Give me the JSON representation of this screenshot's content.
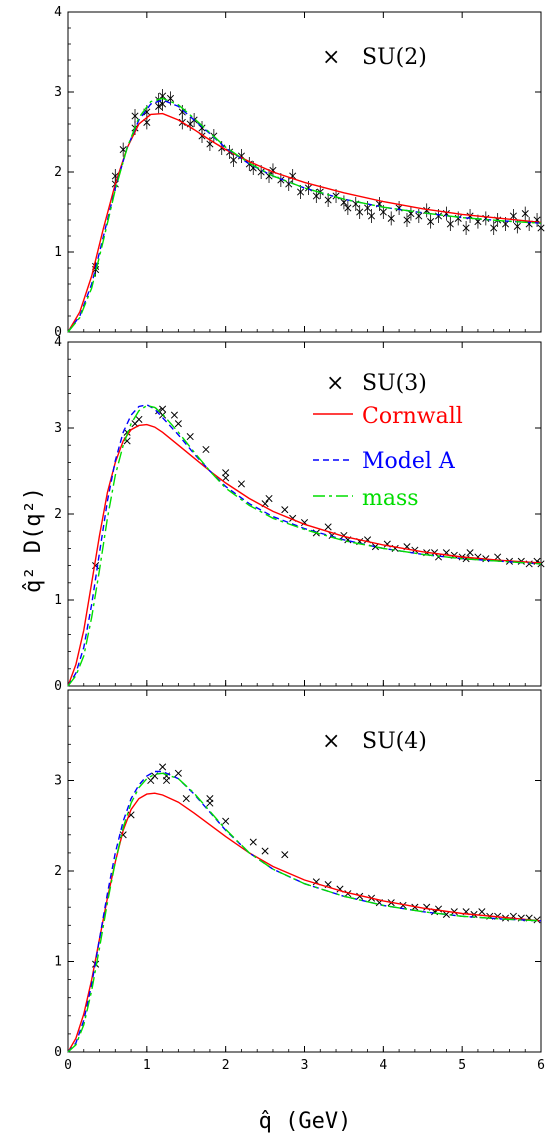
{
  "chart_data": [
    {
      "type": "line",
      "title": "SU(2)",
      "xlim": [
        0,
        6
      ],
      "ylim": [
        0,
        4
      ],
      "yticks": [
        0,
        1,
        2,
        3,
        4
      ],
      "series": [
        {
          "name": "Cornwall",
          "color": "#ff0000",
          "dash": "solid",
          "x": [
            0,
            0.15,
            0.3,
            0.45,
            0.6,
            0.75,
            0.9,
            1.05,
            1.2,
            1.4,
            1.6,
            1.8,
            2.0,
            2.3,
            2.6,
            3.0,
            3.5,
            4.0,
            4.5,
            5.0,
            5.5,
            6.0
          ],
          "y": [
            0,
            0.25,
            0.7,
            1.3,
            1.85,
            2.3,
            2.6,
            2.72,
            2.73,
            2.65,
            2.53,
            2.4,
            2.28,
            2.13,
            2.0,
            1.87,
            1.74,
            1.63,
            1.54,
            1.47,
            1.42,
            1.37
          ]
        },
        {
          "name": "Model A",
          "color": "#0000ff",
          "dash": "dashed",
          "x": [
            0,
            0.15,
            0.3,
            0.45,
            0.6,
            0.75,
            0.9,
            1.05,
            1.2,
            1.4,
            1.6,
            1.8,
            2.0,
            2.3,
            2.6,
            3.0,
            3.5,
            4.0,
            4.5,
            5.0,
            5.5,
            6.0
          ],
          "y": [
            0,
            0.2,
            0.6,
            1.2,
            1.8,
            2.3,
            2.65,
            2.85,
            2.9,
            2.82,
            2.65,
            2.48,
            2.3,
            2.1,
            1.95,
            1.8,
            1.66,
            1.56,
            1.49,
            1.43,
            1.39,
            1.36
          ]
        },
        {
          "name": "mass",
          "color": "#00dd00",
          "dash": "dashdot",
          "x": [
            0,
            0.15,
            0.3,
            0.45,
            0.6,
            0.75,
            0.9,
            1.05,
            1.2,
            1.4,
            1.6,
            1.8,
            2.0,
            2.3,
            2.6,
            3.0,
            3.5,
            4.0,
            4.5,
            5.0,
            5.5,
            6.0
          ],
          "y": [
            0,
            0.18,
            0.55,
            1.15,
            1.78,
            2.3,
            2.68,
            2.88,
            2.92,
            2.84,
            2.67,
            2.49,
            2.31,
            2.11,
            1.95,
            1.8,
            1.66,
            1.56,
            1.49,
            1.43,
            1.39,
            1.36
          ]
        }
      ],
      "points": {
        "x": [
          0.35,
          0.35,
          0.6,
          0.6,
          0.7,
          0.85,
          0.85,
          1.0,
          1.0,
          1.15,
          1.15,
          1.2,
          1.2,
          1.3,
          1.45,
          1.45,
          1.55,
          1.6,
          1.7,
          1.7,
          1.8,
          1.85,
          1.95,
          2.05,
          2.1,
          2.2,
          2.3,
          2.35,
          2.45,
          2.55,
          2.6,
          2.7,
          2.8,
          2.85,
          2.95,
          3.05,
          3.15,
          3.2,
          3.3,
          3.4,
          3.5,
          3.55,
          3.65,
          3.7,
          3.8,
          3.85,
          3.95,
          4.0,
          4.1,
          4.2,
          4.3,
          4.35,
          4.45,
          4.55,
          4.6,
          4.7,
          4.8,
          4.85,
          4.95,
          5.05,
          5.1,
          5.2,
          5.3,
          5.4,
          5.45,
          5.55,
          5.65,
          5.7,
          5.8,
          5.85,
          5.95,
          6.0
        ],
        "y": [
          0.82,
          0.78,
          1.85,
          1.95,
          2.28,
          2.55,
          2.7,
          2.75,
          2.62,
          2.9,
          2.82,
          2.95,
          2.85,
          2.92,
          2.75,
          2.62,
          2.6,
          2.65,
          2.55,
          2.45,
          2.35,
          2.45,
          2.3,
          2.25,
          2.15,
          2.2,
          2.1,
          2.05,
          2.0,
          1.95,
          2.02,
          1.9,
          1.85,
          1.95,
          1.75,
          1.8,
          1.7,
          1.75,
          1.65,
          1.7,
          1.62,
          1.55,
          1.6,
          1.5,
          1.55,
          1.45,
          1.6,
          1.5,
          1.42,
          1.55,
          1.4,
          1.48,
          1.45,
          1.52,
          1.38,
          1.45,
          1.48,
          1.35,
          1.42,
          1.3,
          1.45,
          1.38,
          1.42,
          1.3,
          1.4,
          1.35,
          1.45,
          1.32,
          1.48,
          1.35,
          1.4,
          1.3
        ]
      }
    },
    {
      "type": "line",
      "title": "SU(3)",
      "ylabel": "q̂² D(q²)",
      "xlim": [
        0,
        6
      ],
      "ylim": [
        0,
        4
      ],
      "yticks": [
        0,
        1,
        2,
        3,
        4
      ],
      "legend": [
        "SU(3)",
        "Cornwall",
        "Model A",
        "mass"
      ],
      "series": [
        {
          "name": "Cornwall",
          "color": "#ff0000",
          "dash": "solid",
          "x": [
            0,
            0.1,
            0.2,
            0.3,
            0.4,
            0.5,
            0.6,
            0.7,
            0.8,
            0.9,
            1.0,
            1.1,
            1.2,
            1.4,
            1.6,
            1.8,
            2.0,
            2.3,
            2.6,
            3.0,
            3.5,
            4.0,
            4.5,
            5.0,
            5.5,
            6.0
          ],
          "y": [
            0,
            0.25,
            0.65,
            1.2,
            1.75,
            2.25,
            2.6,
            2.85,
            2.98,
            3.03,
            3.04,
            3.01,
            2.95,
            2.8,
            2.65,
            2.5,
            2.36,
            2.18,
            2.03,
            1.88,
            1.74,
            1.64,
            1.56,
            1.5,
            1.46,
            1.43
          ]
        },
        {
          "name": "Model A",
          "color": "#0000ff",
          "dash": "dashed",
          "x": [
            0,
            0.1,
            0.2,
            0.3,
            0.4,
            0.5,
            0.6,
            0.7,
            0.8,
            0.9,
            1.0,
            1.1,
            1.2,
            1.4,
            1.6,
            1.8,
            2.0,
            2.3,
            2.6,
            3.0,
            3.5,
            4.0,
            4.5,
            5.0,
            5.5,
            6.0
          ],
          "y": [
            0,
            0.15,
            0.45,
            0.95,
            1.55,
            2.15,
            2.62,
            2.95,
            3.15,
            3.25,
            3.27,
            3.22,
            3.12,
            2.92,
            2.7,
            2.5,
            2.32,
            2.12,
            1.97,
            1.83,
            1.7,
            1.6,
            1.53,
            1.48,
            1.45,
            1.42
          ]
        },
        {
          "name": "mass",
          "color": "#00dd00",
          "dash": "dashdot",
          "x": [
            0,
            0.1,
            0.2,
            0.3,
            0.4,
            0.5,
            0.6,
            0.7,
            0.8,
            0.9,
            1.0,
            1.1,
            1.2,
            1.4,
            1.6,
            1.8,
            2.0,
            2.3,
            2.6,
            3.0,
            3.5,
            4.0,
            4.5,
            5.0,
            5.5,
            6.0
          ],
          "y": [
            0,
            0.12,
            0.35,
            0.8,
            1.35,
            1.95,
            2.45,
            2.8,
            3.05,
            3.2,
            3.26,
            3.24,
            3.16,
            2.95,
            2.72,
            2.5,
            2.3,
            2.1,
            1.95,
            1.82,
            1.69,
            1.6,
            1.53,
            1.48,
            1.45,
            1.42
          ]
        }
      ],
      "points": {
        "x": [
          0.35,
          0.75,
          0.75,
          0.85,
          0.9,
          1.15,
          1.2,
          1.2,
          1.35,
          1.4,
          1.55,
          1.75,
          2.0,
          2.0,
          2.2,
          2.5,
          2.55,
          2.75,
          2.85,
          3.0,
          3.15,
          3.3,
          3.35,
          3.5,
          3.55,
          3.7,
          3.8,
          3.9,
          4.05,
          4.15,
          4.3,
          4.4,
          4.55,
          4.65,
          4.7,
          4.8,
          4.9,
          5.0,
          5.05,
          5.1,
          5.2,
          5.3,
          5.45,
          5.6,
          5.75,
          5.85,
          5.95,
          6.0
        ],
        "y": [
          1.4,
          2.85,
          2.95,
          3.05,
          3.1,
          3.2,
          3.22,
          3.15,
          3.15,
          3.05,
          2.9,
          2.75,
          2.48,
          2.42,
          2.35,
          2.12,
          2.18,
          2.05,
          1.95,
          1.9,
          1.78,
          1.85,
          1.75,
          1.75,
          1.7,
          1.68,
          1.7,
          1.62,
          1.65,
          1.6,
          1.62,
          1.58,
          1.55,
          1.55,
          1.5,
          1.55,
          1.52,
          1.5,
          1.48,
          1.55,
          1.5,
          1.48,
          1.5,
          1.45,
          1.45,
          1.42,
          1.45,
          1.42
        ]
      }
    },
    {
      "type": "line",
      "title": "SU(4)",
      "xlabel": "q̂  (GeV)",
      "xlim": [
        0,
        6
      ],
      "ylim": [
        0,
        4
      ],
      "xticks": [
        0,
        1,
        2,
        3,
        4,
        5,
        6
      ],
      "yticks": [
        0,
        1,
        2,
        3
      ],
      "series": [
        {
          "name": "Cornwall",
          "color": "#ff0000",
          "dash": "solid",
          "x": [
            0,
            0.1,
            0.2,
            0.3,
            0.4,
            0.5,
            0.6,
            0.7,
            0.8,
            0.9,
            1.0,
            1.1,
            1.2,
            1.4,
            1.6,
            1.8,
            2.0,
            2.3,
            2.6,
            3.0,
            3.5,
            4.0,
            4.5,
            5.0,
            5.5,
            6.0
          ],
          "y": [
            0,
            0.15,
            0.42,
            0.8,
            1.25,
            1.7,
            2.1,
            2.45,
            2.68,
            2.8,
            2.85,
            2.86,
            2.84,
            2.76,
            2.64,
            2.51,
            2.38,
            2.2,
            2.05,
            1.9,
            1.77,
            1.67,
            1.59,
            1.53,
            1.49,
            1.45
          ]
        },
        {
          "name": "Model A",
          "color": "#0000ff",
          "dash": "dashed",
          "x": [
            0,
            0.1,
            0.2,
            0.3,
            0.4,
            0.5,
            0.6,
            0.7,
            0.8,
            0.9,
            1.0,
            1.1,
            1.2,
            1.4,
            1.6,
            1.8,
            2.0,
            2.3,
            2.6,
            3.0,
            3.5,
            4.0,
            4.5,
            5.0,
            5.5,
            6.0
          ],
          "y": [
            0,
            0.1,
            0.35,
            0.75,
            1.25,
            1.75,
            2.2,
            2.55,
            2.8,
            2.95,
            3.05,
            3.1,
            3.1,
            3.02,
            2.85,
            2.65,
            2.45,
            2.2,
            2.02,
            1.86,
            1.72,
            1.62,
            1.55,
            1.5,
            1.47,
            1.45
          ]
        },
        {
          "name": "mass",
          "color": "#00dd00",
          "dash": "dashdot",
          "x": [
            0,
            0.1,
            0.2,
            0.3,
            0.4,
            0.5,
            0.6,
            0.7,
            0.8,
            0.9,
            1.0,
            1.1,
            1.2,
            1.4,
            1.6,
            1.8,
            2.0,
            2.3,
            2.6,
            3.0,
            3.5,
            4.0,
            4.5,
            5.0,
            5.5,
            6.0
          ],
          "y": [
            0,
            0.08,
            0.3,
            0.68,
            1.15,
            1.65,
            2.1,
            2.48,
            2.75,
            2.92,
            3.02,
            3.07,
            3.08,
            3.02,
            2.86,
            2.66,
            2.46,
            2.2,
            2.02,
            1.86,
            1.72,
            1.62,
            1.55,
            1.5,
            1.47,
            1.45
          ]
        }
      ],
      "points": {
        "x": [
          0.35,
          0.7,
          0.8,
          1.05,
          1.1,
          1.2,
          1.25,
          1.25,
          1.4,
          1.5,
          1.8,
          1.8,
          2.0,
          2.35,
          2.5,
          2.75,
          3.15,
          3.3,
          3.45,
          3.55,
          3.7,
          3.85,
          3.95,
          4.1,
          4.25,
          4.4,
          4.55,
          4.65,
          4.7,
          4.8,
          4.9,
          5.05,
          5.15,
          5.25,
          5.35,
          5.45,
          5.55,
          5.65,
          5.75,
          5.85,
          5.95
        ],
        "y": [
          0.97,
          2.4,
          2.62,
          3.0,
          3.05,
          3.15,
          3.05,
          3.0,
          3.08,
          2.8,
          2.8,
          2.75,
          2.55,
          2.32,
          2.22,
          2.18,
          1.88,
          1.85,
          1.8,
          1.75,
          1.72,
          1.7,
          1.65,
          1.65,
          1.62,
          1.6,
          1.6,
          1.55,
          1.58,
          1.52,
          1.55,
          1.55,
          1.52,
          1.55,
          1.5,
          1.5,
          1.48,
          1.5,
          1.48,
          1.48,
          1.46
        ]
      }
    }
  ]
}
